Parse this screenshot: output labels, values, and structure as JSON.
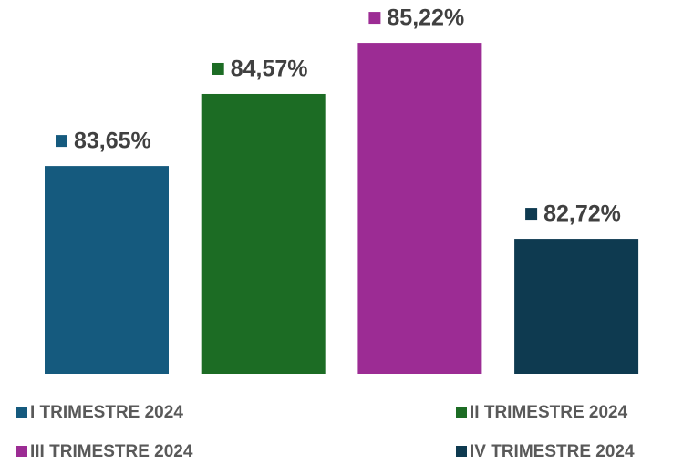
{
  "chart_data": {
    "type": "bar",
    "series": [
      {
        "name": "I TRIMESTRE 2024",
        "color": "#155a7e",
        "values": [
          83.65
        ],
        "value_labels": [
          "83,65%"
        ]
      },
      {
        "name": "II TRIMESTRE 2024",
        "color": "#1c6c24",
        "values": [
          84.57
        ],
        "value_labels": [
          "84,57%"
        ]
      },
      {
        "name": "III TRIMESTRE 2024",
        "color": "#9c2c94",
        "values": [
          85.22
        ],
        "value_labels": [
          "85,22%"
        ]
      },
      {
        "name": "IV TRIMESTRE 2024",
        "color": "#0e3a50",
        "values": [
          82.72
        ],
        "value_labels": [
          "82,72%"
        ]
      }
    ],
    "ylim": [
      81,
      85.5
    ],
    "legend": "bottom"
  }
}
